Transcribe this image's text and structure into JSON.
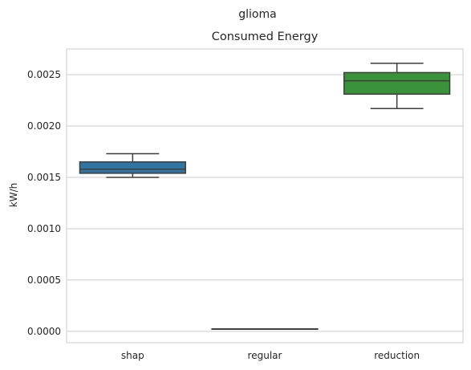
{
  "chart_data": {
    "type": "box",
    "suptitle": "glioma",
    "title": "Consumed Energy",
    "xlabel": "",
    "ylabel": "kW/h",
    "categories": [
      "shap",
      "regular",
      "reduction"
    ],
    "boxes": [
      {
        "name": "shap",
        "whisker_low": 0.0015,
        "q1": 0.00154,
        "median": 0.00158,
        "q3": 0.00165,
        "whisker_high": 0.00173,
        "color": "#3274a1"
      },
      {
        "name": "regular",
        "whisker_low": 2.5e-05,
        "q1": 2.5e-05,
        "median": 2.5e-05,
        "q3": 2.5e-05,
        "whisker_high": 2.5e-05,
        "color": "#e1812c"
      },
      {
        "name": "reduction",
        "whisker_low": 0.00217,
        "q1": 0.00231,
        "median": 0.00244,
        "q3": 0.00252,
        "whisker_high": 0.00261,
        "color": "#3a923a"
      }
    ],
    "yticks": [
      "0.0000",
      "0.0005",
      "0.0010",
      "0.0015",
      "0.0020",
      "0.0025"
    ],
    "ytick_values": [
      0.0,
      0.0005,
      0.001,
      0.0015,
      0.002,
      0.0025
    ],
    "ylim": [
      -0.00011,
      0.00275
    ],
    "grid": "horizontal",
    "edge_color": "#3d3d3d",
    "grid_color": "#cccccc"
  }
}
